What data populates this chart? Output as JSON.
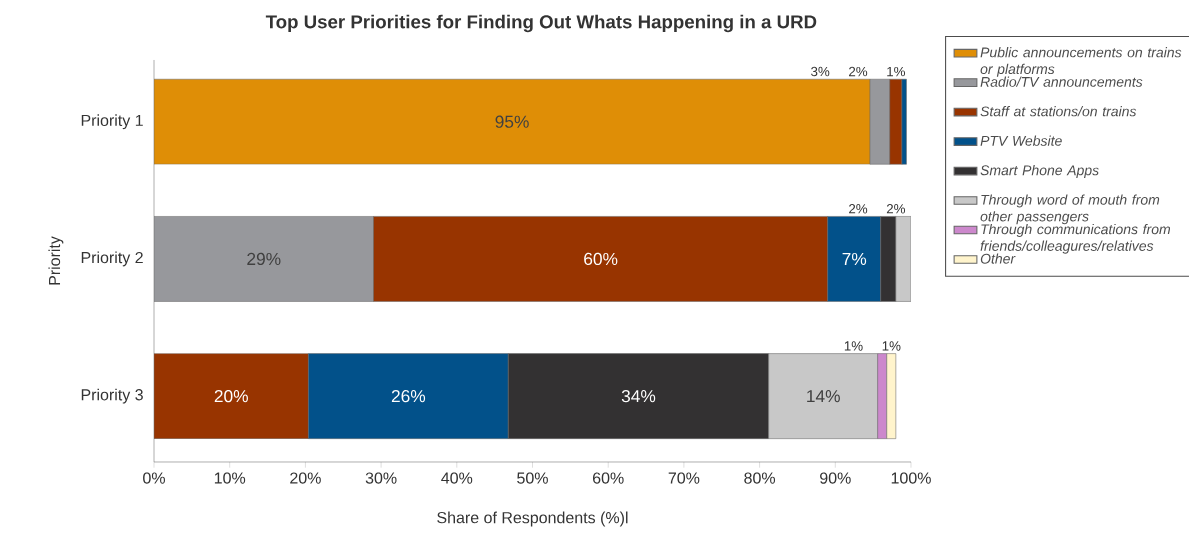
{
  "chart_data": {
    "type": "bar",
    "orientation": "horizontal",
    "stacked": true,
    "title": "Top User Priorities for Finding Out Whats Happening in a URD",
    "xlabel": "Share of Respondents (%)l",
    "ylabel": "Priority",
    "categories": [
      "Priority 1",
      "Priority 2",
      "Priority 3"
    ],
    "series": [
      {
        "name": "Public announcements on trains or platforms",
        "color": "#df8e06",
        "values": [
          94.6,
          null,
          null
        ],
        "value_labels": [
          "95%",
          null,
          null
        ]
      },
      {
        "name": "Radio/TV announcements",
        "color": "#97989c",
        "values": [
          2.6,
          29,
          null
        ],
        "value_labels": [
          "3%",
          "29%",
          null
        ]
      },
      {
        "name": "Staff at stations/on trains",
        "color": "#983400",
        "values": [
          1.6,
          60,
          20.4
        ],
        "value_labels": [
          "2%",
          "60%",
          "20%"
        ]
      },
      {
        "name": "PTV Website",
        "color": "#02518a",
        "values": [
          0.6,
          7,
          26.4
        ],
        "value_labels": [
          "1%",
          "7%",
          "26%"
        ]
      },
      {
        "name": "Smart Phone Apps",
        "color": "#333132",
        "values": [
          null,
          2,
          34.4
        ],
        "value_labels": [
          null,
          "2%",
          "34%"
        ]
      },
      {
        "name": "Through word of mouth from other passengers",
        "color": "#c8c8c8",
        "values": [
          null,
          2,
          14.4
        ],
        "value_labels": [
          null,
          "2%",
          "14%"
        ]
      },
      {
        "name": "Through communications from friends/colleagures/relatives",
        "color": "#cc88cc",
        "values": [
          null,
          null,
          1.2
        ],
        "value_labels": [
          null,
          null,
          "1%"
        ]
      },
      {
        "name": "Other",
        "color": "#fff4cc",
        "values": [
          null,
          null,
          1.2
        ],
        "value_labels": [
          null,
          null,
          "1%"
        ]
      }
    ],
    "xlim": [
      0,
      100
    ],
    "xticks": [
      {
        "value": 0,
        "label": "0%"
      },
      {
        "value": 10,
        "label": "10%"
      },
      {
        "value": 20,
        "label": "20%"
      },
      {
        "value": 30,
        "label": "30%"
      },
      {
        "value": 40,
        "label": "40%"
      },
      {
        "value": 50,
        "label": "50%"
      },
      {
        "value": 60,
        "label": "60%"
      },
      {
        "value": 70,
        "label": "70%"
      },
      {
        "value": 80,
        "label": "80%"
      },
      {
        "value": 90,
        "label": "90%"
      },
      {
        "value": 100,
        "label": "100%"
      }
    ],
    "legend": "right",
    "grid": false
  }
}
